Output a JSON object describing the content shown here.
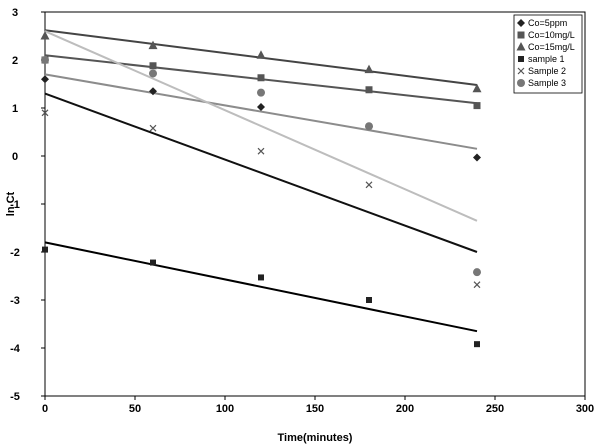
{
  "chart_data": {
    "type": "scatter",
    "xlabel": "Time(minutes)",
    "ylabel": "ln Ct",
    "xlim": [
      0,
      300
    ],
    "ylim": [
      -5,
      3
    ],
    "x_ticks": [
      0,
      50,
      100,
      150,
      200,
      250,
      300
    ],
    "y_ticks": [
      -5,
      -4,
      -3,
      -2,
      -1,
      0,
      1,
      2,
      3
    ],
    "grid": false,
    "legend_position": "top-right",
    "series": [
      {
        "name": "Co=5ppm",
        "marker": "diamond",
        "color": "#222222",
        "x": [
          0,
          60,
          120,
          180,
          240
        ],
        "y": [
          1.6,
          1.35,
          1.02,
          0.62,
          -0.03
        ],
        "trend": [
          [
            0,
            1.7
          ],
          [
            240,
            0.15
          ]
        ],
        "trend_color": "#8c8c8c"
      },
      {
        "name": "Co=10mg/L",
        "marker": "square",
        "color": "#555555",
        "x": [
          0,
          60,
          120,
          180,
          240
        ],
        "y": [
          2.0,
          1.88,
          1.63,
          1.38,
          1.05
        ],
        "trend": [
          [
            0,
            2.1
          ],
          [
            240,
            1.1
          ]
        ],
        "trend_color": "#555555"
      },
      {
        "name": "Co=15mg/L",
        "marker": "triangle",
        "color": "#555555",
        "x": [
          0,
          60,
          120,
          180,
          240
        ],
        "y": [
          2.5,
          2.3,
          2.1,
          1.8,
          1.4
        ],
        "trend": [
          [
            0,
            2.62
          ],
          [
            240,
            1.48
          ]
        ],
        "trend_color": "#444444"
      },
      {
        "name": "sample 1",
        "marker": "square-small",
        "color": "#222222",
        "x": [
          0,
          60,
          120,
          180,
          240
        ],
        "y": [
          -1.95,
          -2.22,
          -2.53,
          -3.0,
          -3.92
        ],
        "trend": [
          [
            0,
            -1.8
          ],
          [
            240,
            -3.65
          ]
        ],
        "trend_color": "#000000"
      },
      {
        "name": "Sample 2",
        "marker": "x",
        "color": "#555555",
        "x": [
          0,
          60,
          120,
          180,
          240
        ],
        "y": [
          0.9,
          0.58,
          0.1,
          -0.6,
          -2.68
        ],
        "trend": [
          [
            0,
            2.6
          ],
          [
            240,
            -1.35
          ]
        ],
        "trend_color": "#bdbdbd"
      },
      {
        "name": "Sample 3",
        "marker": "circle",
        "color": "#777777",
        "x": [
          0,
          60,
          120,
          180,
          240
        ],
        "y": [
          2.0,
          1.72,
          1.32,
          0.62,
          -2.42
        ],
        "trend": [
          [
            0,
            1.3
          ],
          [
            240,
            -2.0
          ]
        ],
        "trend_color": "#111111"
      }
    ]
  }
}
